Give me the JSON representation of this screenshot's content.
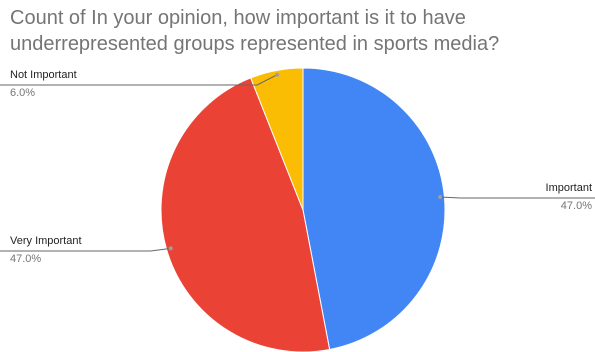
{
  "chart_data": {
    "type": "pie",
    "title_lines": [
      "Count of In your opinion, how important is it to have",
      "underrepresented groups represented in sports media?"
    ],
    "slices": [
      {
        "label": "Important",
        "value": 47.0,
        "percent_label": "47.0%",
        "color": "#4285f4"
      },
      {
        "label": "Very Important",
        "value": 47.0,
        "percent_label": "47.0%",
        "color": "#ea4335"
      },
      {
        "label": "Not Important",
        "value": 6.0,
        "percent_label": "6.0%",
        "color": "#fbbc04"
      }
    ],
    "legend": "none",
    "start_angle_deg": 0,
    "direction": "clockwise"
  }
}
